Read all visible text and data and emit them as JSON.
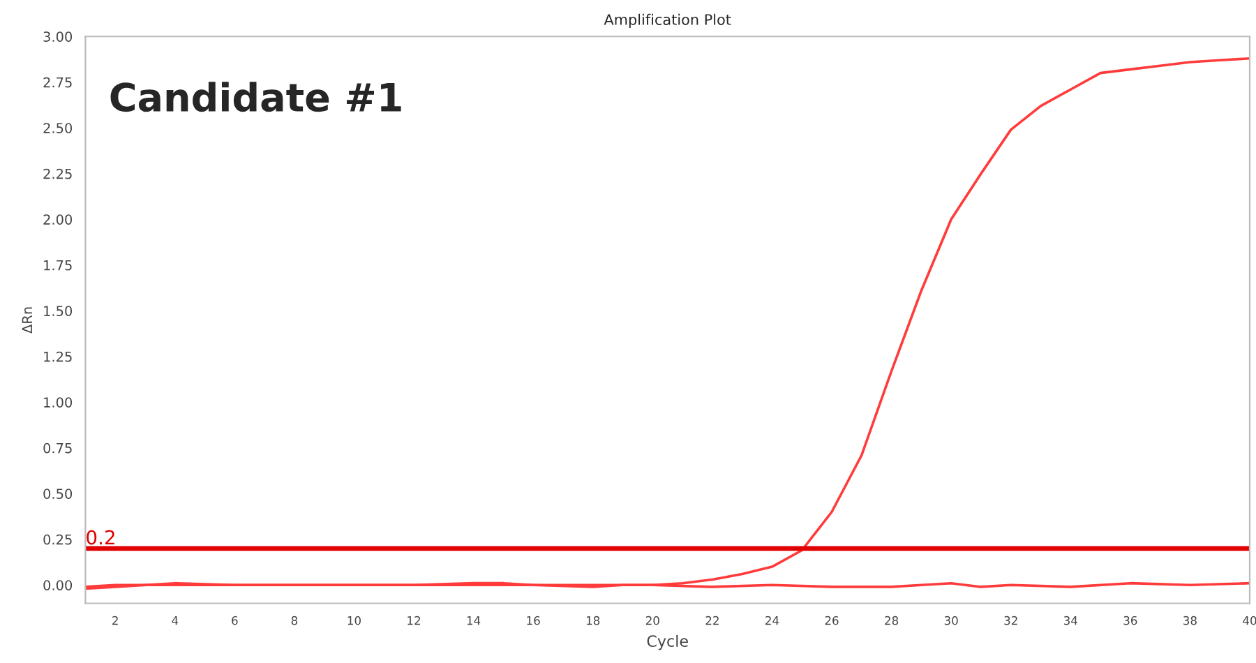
{
  "chart_data": {
    "type": "line",
    "title": "Amplification Plot",
    "xlabel": "Cycle",
    "ylabel": "ΔRn",
    "annotations": [
      "Candidate #1"
    ],
    "series": [
      {
        "color": "#ff3b3b",
        "x": [
          1,
          2,
          4,
          6,
          8,
          10,
          12,
          14,
          16,
          18,
          20,
          21,
          22,
          23,
          24,
          25,
          26,
          27,
          28,
          29,
          30,
          31,
          32,
          33,
          34,
          35,
          36,
          37,
          38,
          39,
          40
        ],
        "values": [
          -0.01,
          0.0,
          0.0,
          0.0,
          0.0,
          0.0,
          0.0,
          0.0,
          0.0,
          0.0,
          0.0,
          0.01,
          0.03,
          0.06,
          0.1,
          0.19,
          0.4,
          0.71,
          1.17,
          1.61,
          2.0,
          2.25,
          2.49,
          2.62,
          2.71,
          2.8,
          2.82,
          2.84,
          2.86,
          2.87,
          2.88
        ]
      },
      {
        "color": "#ff3b3b",
        "x": [
          1,
          2,
          4,
          6,
          8,
          10,
          12,
          14,
          15,
          16,
          18,
          19,
          20,
          22,
          24,
          26,
          28,
          29,
          30,
          31,
          32,
          34,
          36,
          38,
          40
        ],
        "values": [
          -0.02,
          -0.01,
          0.01,
          0.0,
          0.0,
          0.0,
          0.0,
          0.01,
          0.01,
          0.0,
          -0.01,
          0.0,
          0.0,
          -0.01,
          0.0,
          -0.01,
          -0.01,
          0.0,
          0.01,
          -0.01,
          0.0,
          -0.01,
          0.01,
          0.0,
          0.01
        ]
      }
    ],
    "ref_lines": [
      {
        "axis": "y",
        "value": 0.2,
        "label": "0.2",
        "color": "#e00000"
      }
    ],
    "xlim": [
      1,
      40
    ],
    "ylim": [
      -0.1,
      3.0
    ],
    "xticks": [
      2,
      4,
      6,
      8,
      10,
      12,
      14,
      16,
      18,
      20,
      22,
      24,
      26,
      28,
      30,
      32,
      34,
      36,
      38,
      40
    ],
    "yticks": [
      {
        "value": 0,
        "label": "0.00"
      },
      {
        "value": 0.25,
        "label": "0.25"
      },
      {
        "value": 0.5,
        "label": "0.50"
      },
      {
        "value": 0.75,
        "label": "0.75"
      },
      {
        "value": 1,
        "label": "1.00"
      },
      {
        "value": 1.25,
        "label": "1.25"
      },
      {
        "value": 1.5,
        "label": "1.50"
      },
      {
        "value": 1.75,
        "label": "1.75"
      },
      {
        "value": 2,
        "label": "2.00"
      },
      {
        "value": 2.25,
        "label": "2.25"
      },
      {
        "value": 2.5,
        "label": "2.50"
      },
      {
        "value": 2.75,
        "label": "2.75"
      },
      {
        "value": 3,
        "label": "3.00"
      }
    ],
    "grid": false,
    "legend": false,
    "marker": "none",
    "line_style": "solid"
  }
}
